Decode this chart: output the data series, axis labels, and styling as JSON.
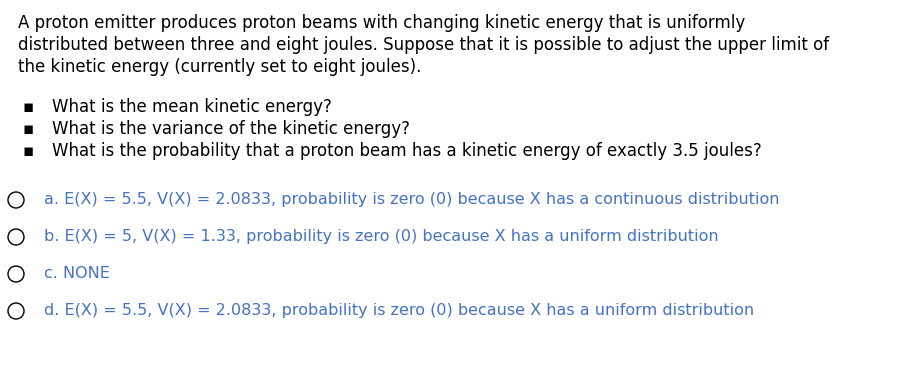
{
  "background_color": "#ffffff",
  "paragraph_lines": [
    "A proton emitter produces proton beams with changing kinetic energy that is uniformly",
    "distributed between three and eight joules. Suppose that it is possible to adjust the upper limit of",
    "the kinetic energy (currently set to eight joules)."
  ],
  "bullet_points": [
    "What is the mean kinetic energy?",
    "What is the variance of the kinetic energy?",
    "What is the probability that a proton beam has a kinetic energy of exactly 3.5 joules?"
  ],
  "options": [
    {
      "label": "a.",
      "text": "E(X) = 5.5, V(X) = 2.0833, probability is zero (0) because X has a continuous distribution"
    },
    {
      "label": "b.",
      "text": "E(X) = 5, V(X) = 1.33, probability is zero (0) because X has a uniform distribution"
    },
    {
      "label": "c.",
      "text": "NONE"
    },
    {
      "label": "d.",
      "text": "E(X) = 5.5, V(X) = 2.0833, probability is zero (0) because X has a uniform distribution"
    }
  ],
  "font_size_paragraph": 12.0,
  "font_size_bullets": 12.0,
  "font_size_options": 11.5,
  "text_color": "#000000",
  "option_text_color": "#4472C4",
  "bullet_char": "▪"
}
